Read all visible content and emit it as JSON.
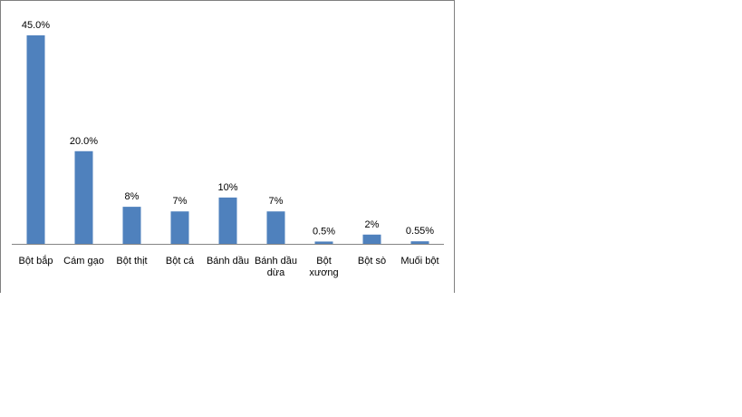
{
  "chart_data": {
    "type": "bar",
    "categories": [
      [
        "Bột bắp"
      ],
      [
        "Cám gạo"
      ],
      [
        "Bột thịt"
      ],
      [
        "Bột cá"
      ],
      [
        "Bánh dầu"
      ],
      [
        "Bánh dầu",
        "dừa"
      ],
      [
        "Bột",
        "xương"
      ],
      [
        "Bột sò"
      ],
      [
        "Muối bột"
      ]
    ],
    "values": [
      45.0,
      20.0,
      8,
      7,
      10,
      7,
      0.5,
      2,
      0.55
    ],
    "data_labels": [
      "45.0%",
      "20.0%",
      "8%",
      "7%",
      "10%",
      "7%",
      "0.5%",
      "2%",
      "0.55%"
    ],
    "ylim": [
      0,
      45.0
    ],
    "grid": false,
    "legend": "none",
    "colors": {
      "bar": "#4f81bd",
      "frame": "#808080",
      "axis": "#868686",
      "text": "#000000"
    }
  }
}
